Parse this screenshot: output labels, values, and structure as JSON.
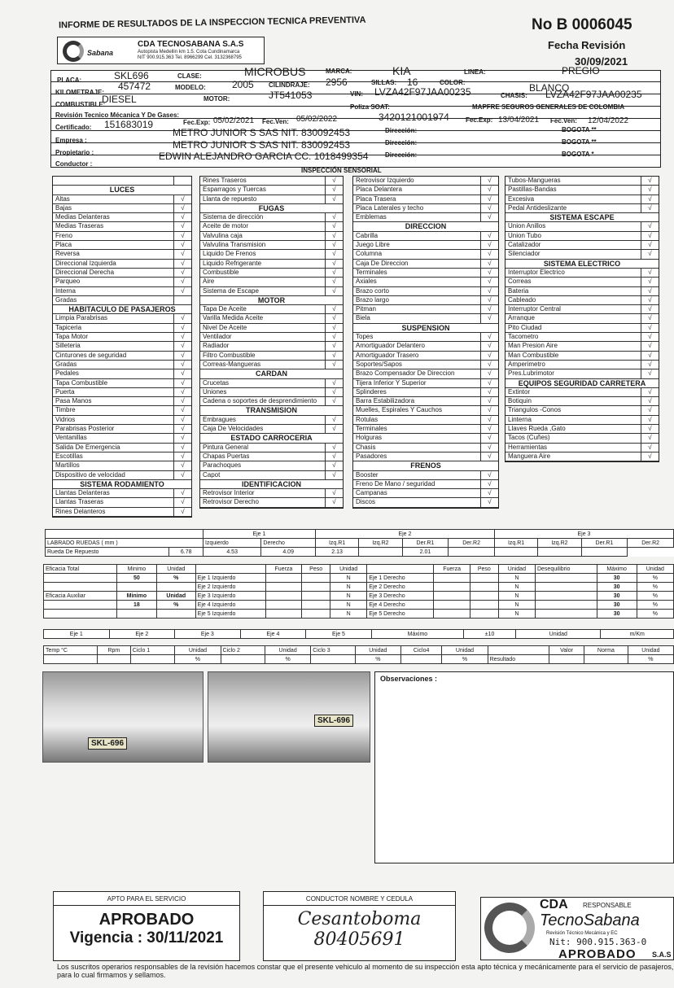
{
  "header": {
    "title": "INFORME DE RESULTADOS DE LA INSPECCION TECNICA PREVENTIVA",
    "doc_number": "No B 0006045",
    "fecha_label": "Fecha Revisión",
    "fecha": "30/09/2021"
  },
  "company": {
    "name": "CDA TECNOSABANA S.A.S",
    "logo_text": "Sabana",
    "address": "Autopista Medellin km 1.5. Cota Cundinamarca",
    "nit": "NIT 900.915.363 Tel. 8966299 Cel. 3132368795"
  },
  "vehicle": {
    "placa_label": "PLACA:",
    "placa": "SKL696",
    "clase_label": "CLASE:",
    "clase": "MICROBUS",
    "marca_label": "MARCA:",
    "marca": "KIA",
    "linea_label": "LINEA:",
    "linea": "PREGIO",
    "km_label": "KILOMETRAJE:",
    "km": "457472",
    "modelo_label": "MODELO:",
    "modelo": "2005",
    "cil_label": "CILINDRAJE:",
    "cil": "2956",
    "sillas_label": "SILLAS:",
    "sillas": "16",
    "color_label": "COLOR:",
    "color": "BLANCO",
    "comb_label": "COMBUSTIBLE:",
    "comb": "DIESEL",
    "motor_label": "MOTOR:",
    "motor": "JT541053",
    "vin_label": "VIN:",
    "vin": "LVZA42F97JAA00235",
    "chasis_label": "CHASIS:",
    "chasis": "LVZA42F97JAA00235",
    "rtm_label": "Revisión Tecnico Mécanica Y De Gases:",
    "soat_label": "Poliza SOAT:",
    "soat_company": "MAPFRE SEGUROS GENERALES DE COLOMBIA",
    "cert_label": "Certificado:",
    "cert": "151683019",
    "fexp_label": "Fec.Exp:",
    "rtm_exp": "05/02/2021",
    "fven_label": "Fec.Ven:",
    "rtm_ven": "05/02/2022",
    "soat_num": "3420121001974",
    "soat_exp": "13/04/2021",
    "soat_ven": "12/04/2022",
    "empresa_label": "Empresa :",
    "empresa": "METRO JUNIOR S SAS NIT. 830092453",
    "propietario_label": "Propietario :",
    "propietario": "METRO JUNIOR S SAS NIT. 830092453",
    "conductor_label": "Conductor :",
    "conductor": "EDWIN ALEJANDRO GARCIA  CC. 1018499354",
    "dir_label": "Dirección:",
    "dir_empresa": "BOGOTA **",
    "dir_propietario": "BOGOTA **",
    "dir_conductor": "BOGOTA *"
  },
  "inspection_title": "INSPECCIÓN SENSORIAL",
  "check_mark": "√",
  "columns": [
    [
      {
        "i": "",
        "c": ""
      },
      {
        "s": "LUCES"
      },
      {
        "i": "Altas",
        "c": "√"
      },
      {
        "i": "Bajas",
        "c": "√"
      },
      {
        "i": "Medias Delanteras",
        "c": "√"
      },
      {
        "i": "Medias Traseras",
        "c": "√"
      },
      {
        "i": "Freno",
        "c": "√"
      },
      {
        "i": "Placa",
        "c": "√"
      },
      {
        "i": "Reversa",
        "c": "√"
      },
      {
        "i": "Direccional Izquierda",
        "c": "√"
      },
      {
        "i": "Direccional Derecha",
        "c": "√"
      },
      {
        "i": "Parqueo",
        "c": "√"
      },
      {
        "i": "Interna",
        "c": "√"
      },
      {
        "i": "Gradas",
        "c": ""
      },
      {
        "s": "HABITACULO DE PASAJEROS"
      },
      {
        "i": "Limpia Parabrisas",
        "c": "√"
      },
      {
        "i": "Tapiceria",
        "c": "√"
      },
      {
        "i": "Tapa Motor",
        "c": "√"
      },
      {
        "i": "Silleteria",
        "c": "√"
      },
      {
        "i": "Cinturones de seguridad",
        "c": "√"
      },
      {
        "i": "Gradas",
        "c": "√"
      },
      {
        "i": "Pedales",
        "c": "√"
      },
      {
        "i": "Tapa Combustible",
        "c": "√"
      },
      {
        "i": "Puerta",
        "c": "√"
      },
      {
        "i": "Pasa Manos",
        "c": "√"
      },
      {
        "i": "Timbre",
        "c": "√"
      },
      {
        "i": "Vidrios",
        "c": "√"
      },
      {
        "i": "Parabrisas Posterior",
        "c": "√"
      },
      {
        "i": "Ventanillas",
        "c": "√"
      },
      {
        "i": "Salida De Emergencia",
        "c": "√"
      },
      {
        "i": "Escotillas",
        "c": "√"
      },
      {
        "i": "Martillos",
        "c": "√"
      },
      {
        "i": "Dispositivo de velocidad",
        "c": "√"
      },
      {
        "s": "SISTEMA RODAMIENTO"
      },
      {
        "i": "Llantas Delanteras",
        "c": "√"
      },
      {
        "i": "Llantas Traseras",
        "c": "√"
      },
      {
        "i": "Rines Delanteros",
        "c": "√"
      }
    ],
    [
      {
        "i": "Rines Traseros",
        "c": "√"
      },
      {
        "i": "Esparragos y Tuercas",
        "c": "√"
      },
      {
        "i": "Llanta de repuesto",
        "c": "√"
      },
      {
        "s": "FUGAS"
      },
      {
        "i": "Sistema de dirección",
        "c": "√"
      },
      {
        "i": "Aceite de motor",
        "c": "√"
      },
      {
        "i": "Valvulina caja",
        "c": "√"
      },
      {
        "i": "Valvulina Transmision",
        "c": "√"
      },
      {
        "i": "Liquido De Frenos",
        "c": "√"
      },
      {
        "i": "Liquido Refrigerante",
        "c": "√"
      },
      {
        "i": "Combustible",
        "c": "√"
      },
      {
        "i": "Aire",
        "c": "√"
      },
      {
        "i": "Sistema de Escape",
        "c": "√"
      },
      {
        "s": "MOTOR"
      },
      {
        "i": "Tapa De Aceite",
        "c": "√"
      },
      {
        "i": "Varilla Medida Aceite",
        "c": "√"
      },
      {
        "i": "Nivel De Aceite",
        "c": "√"
      },
      {
        "i": "Ventilador",
        "c": "√"
      },
      {
        "i": "Radiador",
        "c": "√"
      },
      {
        "i": "Filtro Combustible",
        "c": "√"
      },
      {
        "i": "Correas-Mangueras",
        "c": "√"
      },
      {
        "s": "CARDAN"
      },
      {
        "i": "Crucetas",
        "c": "√"
      },
      {
        "i": "Uniones",
        "c": "√"
      },
      {
        "i": "Cadena o soportes de desprendimiento",
        "c": "√"
      },
      {
        "s": "TRANSMISION"
      },
      {
        "i": "Embragues",
        "c": "√"
      },
      {
        "i": "Caja De Velocidades",
        "c": "√"
      },
      {
        "s": "ESTADO CARROCERIA"
      },
      {
        "i": "Pintura General",
        "c": "√"
      },
      {
        "i": "Chapas Puertas",
        "c": "√"
      },
      {
        "i": "Parachoques",
        "c": "√"
      },
      {
        "i": "Capot",
        "c": "√"
      },
      {
        "s": "IDENTIFICACION"
      },
      {
        "i": "Retrovisor Interior",
        "c": "√"
      },
      {
        "i": "Retrovisor Derecho",
        "c": "√"
      }
    ],
    [
      {
        "i": "Retrovisor Izquierdo",
        "c": "√"
      },
      {
        "i": "Placa Delantera",
        "c": "√"
      },
      {
        "i": "Placa Trasera",
        "c": "√"
      },
      {
        "i": "Placa Laterales y techo",
        "c": "√"
      },
      {
        "i": "Emblemas",
        "c": "√"
      },
      {
        "s": "DIRECCION"
      },
      {
        "i": "Cabrilla",
        "c": "√"
      },
      {
        "i": "Juego Libre",
        "c": "√"
      },
      {
        "i": "Columna",
        "c": "√"
      },
      {
        "i": "Caja De Direccion",
        "c": "√"
      },
      {
        "i": "Terminales",
        "c": "√"
      },
      {
        "i": "Axiales",
        "c": "√"
      },
      {
        "i": "Brazo corto",
        "c": "√"
      },
      {
        "i": "Brazo largo",
        "c": "√"
      },
      {
        "i": "Pitman",
        "c": "√"
      },
      {
        "i": "Biela",
        "c": "√"
      },
      {
        "s": "SUSPENSION"
      },
      {
        "i": "Topes",
        "c": "√"
      },
      {
        "i": "Amortiguador Delantero",
        "c": "√"
      },
      {
        "i": "Amortiguador Trasero",
        "c": "√"
      },
      {
        "i": "Soportes/Sapos",
        "c": "√"
      },
      {
        "i": "Brazo Compensador De Direccion",
        "c": "√"
      },
      {
        "i": "Tijera Inferior Y Superior",
        "c": "√"
      },
      {
        "i": "Splinderes",
        "c": "√"
      },
      {
        "i": "Barra Estabilizadora",
        "c": "√"
      },
      {
        "i": "Muelles, Espirales Y Cauchos",
        "c": "√"
      },
      {
        "i": "Rotulas",
        "c": "√"
      },
      {
        "i": "Terminales",
        "c": "√"
      },
      {
        "i": "Holguras",
        "c": "√"
      },
      {
        "i": "Chasis",
        "c": "√"
      },
      {
        "i": "Pasadores",
        "c": "√"
      },
      {
        "s": "FRENOS"
      },
      {
        "i": "Booster",
        "c": "√"
      },
      {
        "i": "Freno De Mano / seguridad",
        "c": "√"
      },
      {
        "i": "Campanas",
        "c": "√"
      },
      {
        "i": "Discos",
        "c": "√"
      }
    ],
    [
      {
        "i": "Tubos-Mangueras",
        "c": "√"
      },
      {
        "i": "Pastillas-Bandas",
        "c": "√"
      },
      {
        "i": "Excesiva",
        "c": "√"
      },
      {
        "i": "Pedal Antideslizante",
        "c": "√"
      },
      {
        "s": "SISTEMA ESCAPE"
      },
      {
        "i": "Union Anillos",
        "c": "√"
      },
      {
        "i": "Union Tubo",
        "c": "√"
      },
      {
        "i": "Catalizador",
        "c": "√"
      },
      {
        "i": "Silenciador",
        "c": "√"
      },
      {
        "s": "SISTEMA ELECTRICO"
      },
      {
        "i": "Interruptor Electrico",
        "c": "√"
      },
      {
        "i": "Correas",
        "c": "√"
      },
      {
        "i": "Bateria",
        "c": "√"
      },
      {
        "i": "Cableado",
        "c": "√"
      },
      {
        "i": "Interruptor Central",
        "c": "√"
      },
      {
        "i": "Arranque",
        "c": "√"
      },
      {
        "i": "Pito Ciudad",
        "c": "√"
      },
      {
        "i": "Tacometro",
        "c": "√"
      },
      {
        "i": "Man Presion Aire",
        "c": "√"
      },
      {
        "i": "Man Combustible",
        "c": "√"
      },
      {
        "i": "Amperimetro",
        "c": "√"
      },
      {
        "i": "Pres.Lubrimotor",
        "c": "√"
      },
      {
        "s": "EQUIPOS SEGURIDAD CARRETERA"
      },
      {
        "i": "Extintor",
        "c": "√"
      },
      {
        "i": "Botiquin",
        "c": "√"
      },
      {
        "i": "Triangulos -Conos",
        "c": "√"
      },
      {
        "i": "Linterna",
        "c": "√"
      },
      {
        "i": "Llaves Rueda ,Gato",
        "c": "√"
      },
      {
        "i": "Tacos (Cuñes)",
        "c": "√"
      },
      {
        "i": "Herramientas",
        "c": "√"
      },
      {
        "i": "Manguera Aire",
        "c": "√"
      }
    ]
  ],
  "labrado": [
    [
      "",
      "Eje 1",
      "Eje 2",
      "Eje 3"
    ],
    [
      "LABRADO RUEDAS ( mm )",
      "Izquierdo",
      "Derecho",
      "Izq.R1",
      "Izq.R2",
      "Der.R1",
      "Der.R2",
      "Izq.R1",
      "Izq.R2",
      "Der.R1",
      "Der.R2"
    ],
    [
      "Rueda De Repuesto",
      "6.78",
      "4.53",
      "4.09",
      "2.13",
      "",
      "2.01",
      "",
      "",
      "",
      ""
    ]
  ],
  "frenos": [
    [
      "Eficacia Total",
      "Minimo",
      "Unidad",
      "",
      "Fuerza",
      "Peso",
      "Unidad",
      "",
      "Fuerza",
      "Peso",
      "Unidad",
      "Desequilibrio",
      "Máximo",
      "Unidad"
    ],
    [
      "",
      "50",
      "%",
      "Eje 1 Izquierdo",
      "",
      "",
      "N",
      "Eje 1 Derecho",
      "",
      "",
      "N",
      "",
      "30",
      "%"
    ],
    [
      "",
      "",
      "",
      "Eje 2 Izquierdo",
      "",
      "",
      "N",
      "Eje 2 Derecho",
      "",
      "",
      "N",
      "",
      "30",
      "%"
    ],
    [
      "Eficacia Auxiliar",
      "Minimo",
      "Unidad",
      "Eje 3 Izquierdo",
      "",
      "",
      "N",
      "Eje 3 Derecho",
      "",
      "",
      "N",
      "",
      "30",
      "%"
    ],
    [
      "",
      "18",
      "%",
      "Eje 4 Izquierdo",
      "",
      "",
      "N",
      "Eje 4 Derecho",
      "",
      "",
      "N",
      "",
      "30",
      "%"
    ],
    [
      "",
      "",
      "",
      "Eje 5 Izquierdo",
      "",
      "",
      "N",
      "Eje 5 Derecho",
      "",
      "",
      "N",
      "",
      "30",
      "%"
    ]
  ],
  "alineacion": [
    [
      "Eje 1",
      "Eje 2",
      "Eje 3",
      "Eje 4",
      "Eje 5",
      "Máximo",
      "±10",
      "Unidad",
      "m/Km"
    ]
  ],
  "gases": [
    [
      "Temp °C",
      "Rpm",
      "Ciclo 1",
      "Unidad",
      "Ciclo 2",
      "Unidad",
      "Ciclo 3",
      "Unidad",
      "Ciclo4",
      "Unidad",
      "",
      "Valor",
      "Norma",
      "Unidad"
    ],
    [
      "",
      "",
      "",
      "%",
      "",
      "%",
      "",
      "%",
      "",
      "%",
      "Resultado",
      "",
      "",
      "%"
    ]
  ],
  "photos": {
    "plate1": "SKL-696",
    "plate2": "SKL-696"
  },
  "observaciones_label": "Observaciones :",
  "apto": {
    "header": "APTO PARA EL SERVICIO",
    "status": "APROBADO",
    "vigencia": "Vigencia : 30/11/2021"
  },
  "conductor_box": {
    "header": "CONDUCTOR NOMBRE Y CEDULA",
    "signature_name": "Cesantoboma",
    "signature_id": "80405691"
  },
  "responsable": {
    "header": "RESPONSABLE",
    "stamp_cda": "CDA",
    "stamp_name": "TecnoSabana",
    "stamp_sub": "Revisión Técnico Mecánica y EC",
    "stamp_nit": "Nit: 900.915.363-0",
    "stamp_status": "APROBADO",
    "stamp_sas": "S.A.S"
  },
  "footer": "Los suscritos operarios  responsables de la revisión hacemos constar que el presente vehiculo al momento de su inspección esta apto técnica y mecánicamente para el servicio de pasajeros, para lo cual firmamos y sellamos."
}
